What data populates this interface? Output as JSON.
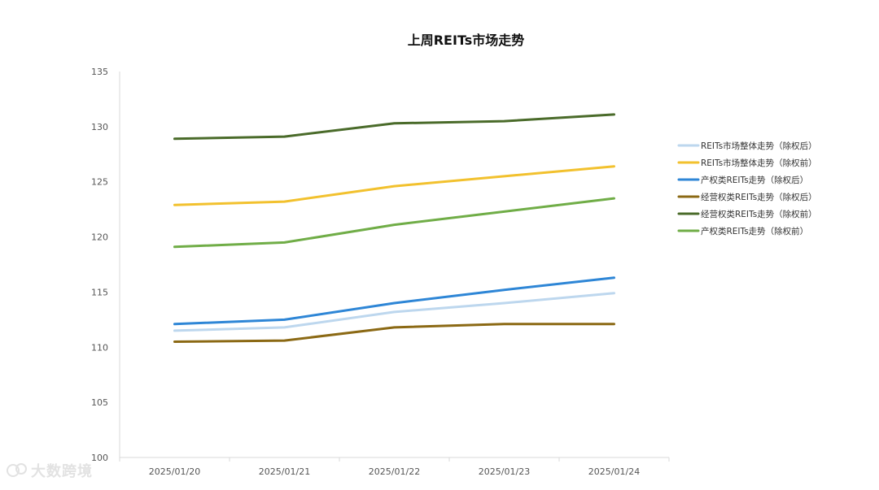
{
  "chart_data": {
    "type": "line",
    "title": "上周REITs市场走势",
    "xlabel": "",
    "ylabel": "",
    "categories": [
      "2025/01/20",
      "2025/01/21",
      "2025/01/22",
      "2025/01/23",
      "2025/01/24"
    ],
    "ylim": [
      100,
      135
    ],
    "yticks": [
      100,
      105,
      110,
      115,
      120,
      125,
      130,
      135
    ],
    "grid": false,
    "legend_position": "right",
    "series": [
      {
        "name": "REITs市场整体走势（除权后）",
        "color": "#bdd7ee",
        "values": [
          111.5,
          111.8,
          113.2,
          114.0,
          114.9
        ]
      },
      {
        "name": "REITs市场整体走势（除权前）",
        "color": "#f2c12e",
        "values": [
          122.9,
          123.2,
          124.6,
          125.5,
          126.4
        ]
      },
      {
        "name": "产权类REITs走势（除权后）",
        "color": "#2e86d6",
        "values": [
          112.1,
          112.5,
          114.0,
          115.2,
          116.3
        ]
      },
      {
        "name": "经营权类REITs走势（除权后）",
        "color": "#8b6914",
        "values": [
          110.5,
          110.6,
          111.8,
          112.1,
          112.1
        ]
      },
      {
        "name": "经营权类REITs走势（除权前）",
        "color": "#4a6b2a",
        "values": [
          128.9,
          129.1,
          130.3,
          130.5,
          131.1
        ]
      },
      {
        "name": "产权类REITs走势（除权前）",
        "color": "#70ad47",
        "values": [
          119.1,
          119.5,
          121.1,
          122.3,
          123.5
        ]
      }
    ]
  },
  "watermark": {
    "text": "大数跨境",
    "color": "#e2e2e2"
  }
}
